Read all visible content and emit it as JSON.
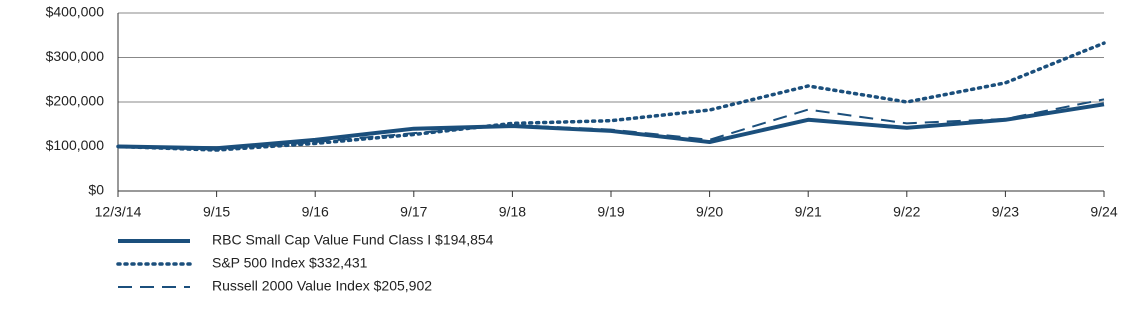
{
  "chart_data": {
    "type": "line",
    "categories": [
      "12/3/14",
      "9/15",
      "9/16",
      "9/17",
      "9/18",
      "9/19",
      "9/20",
      "9/21",
      "9/22",
      "9/23",
      "9/24"
    ],
    "series": [
      {
        "name": "RBC Small Cap Value Fund Class I $194,854",
        "color": "#1b4f7c",
        "dash": "solid",
        "values": [
          100000,
          96000,
          115000,
          140000,
          146000,
          135000,
          110000,
          160000,
          142000,
          160000,
          194854
        ]
      },
      {
        "name": "S&P 500 Index $332,431",
        "color": "#1b4f7c",
        "dash": "dotted",
        "values": [
          100000,
          92000,
          107000,
          127000,
          152000,
          158000,
          182000,
          236000,
          200000,
          243000,
          332431
        ]
      },
      {
        "name": "Russell 2000 Value Index $205,902",
        "color": "#1b4f7c",
        "dash": "dashed",
        "values": [
          100000,
          93000,
          110000,
          130000,
          148000,
          138000,
          115000,
          183000,
          152000,
          162000,
          205902
        ]
      }
    ],
    "ylim": [
      0,
      400000
    ],
    "yticks": [
      {
        "value": 0,
        "label": "$0"
      },
      {
        "value": 100000,
        "label": "$100,000"
      },
      {
        "value": 200000,
        "label": "$200,000"
      },
      {
        "value": 300000,
        "label": "$300,000"
      },
      {
        "value": 400000,
        "label": "$400,000"
      }
    ],
    "grid": true
  }
}
